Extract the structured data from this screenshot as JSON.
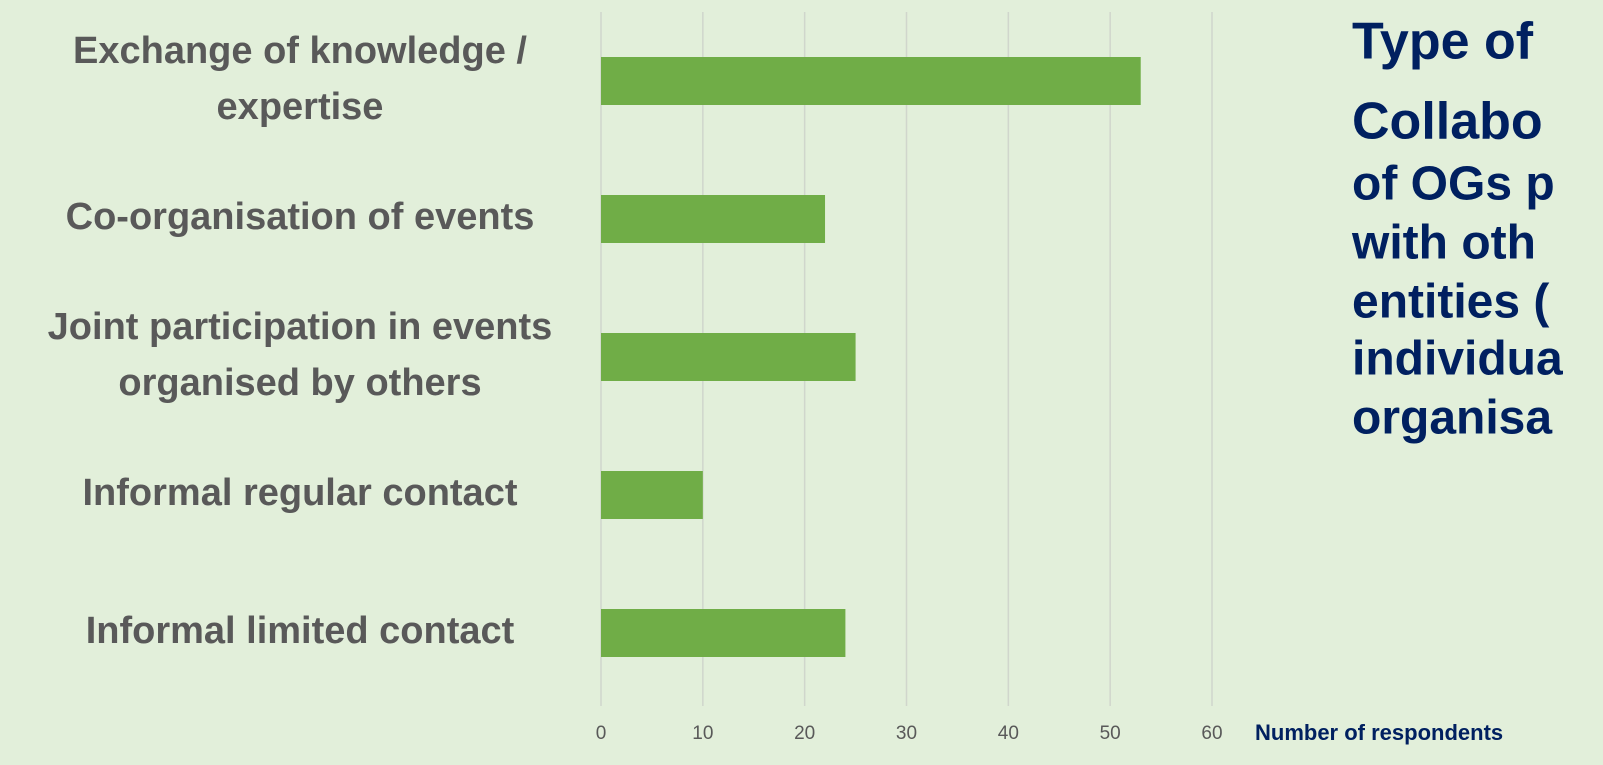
{
  "chart_data": {
    "type": "bar",
    "orientation": "horizontal",
    "title_lines": [
      "Type of",
      "Collabo",
      "of OGs p",
      "with oth",
      "entities (",
      "individua",
      "organisa"
    ],
    "categories": [
      [
        "Exchange of knowledge /",
        "expertise"
      ],
      [
        "Co-organisation of events"
      ],
      [
        "Joint participation in events",
        "organised by others"
      ],
      [
        "Informal regular contact"
      ],
      [
        "Informal limited contact"
      ]
    ],
    "values": [
      53,
      22,
      25,
      10,
      24
    ],
    "color": "#70ad47",
    "xlim": [
      0,
      60
    ],
    "xticks": [
      0,
      10,
      20,
      30,
      40,
      50,
      60
    ],
    "x_label": "Number of respondents",
    "grid": true
  }
}
